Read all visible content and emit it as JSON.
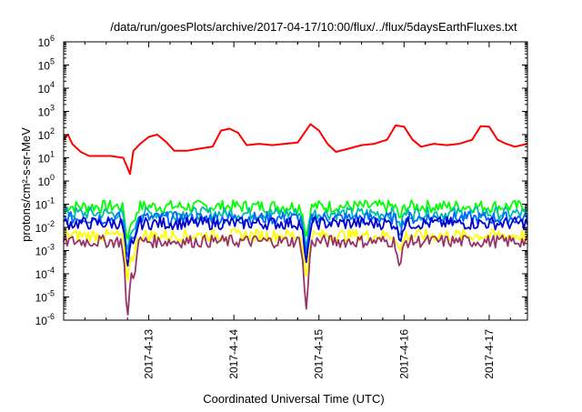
{
  "chart_data": {
    "type": "line",
    "title": "/data/run/goesPlots/archive/2017-04-17/10:00/flux/../flux/5daysEarthFluxes.txt",
    "xlabel": "Coordinated Universal Time (UTC)",
    "ylabel": "protons/cm²-s-sr-MeV",
    "x_ticks": [
      "2017-4-13",
      "2017-4-14",
      "2017-4-15",
      "2017-4-16",
      "2017-4-17"
    ],
    "x_tick_days": [
      13,
      14,
      15,
      16,
      17
    ],
    "xlim_days": [
      12.0,
      17.45
    ],
    "y_scale": "log",
    "y_tick_exponents": [
      -6,
      -5,
      -4,
      -3,
      -2,
      -1,
      0,
      1,
      2,
      3,
      4,
      5,
      6
    ],
    "ylim": [
      1e-06,
      1000000.0
    ],
    "grid": false,
    "series": [
      {
        "color": "#ff0000",
        "baseline": 40,
        "points": [
          [
            12.0,
            60
          ],
          [
            12.05,
            100
          ],
          [
            12.1,
            40
          ],
          [
            12.2,
            18
          ],
          [
            12.3,
            12
          ],
          [
            12.45,
            12
          ],
          [
            12.55,
            12
          ],
          [
            12.7,
            10
          ],
          [
            12.78,
            2
          ],
          [
            12.82,
            20
          ],
          [
            12.9,
            40
          ],
          [
            13.0,
            80
          ],
          [
            13.1,
            100
          ],
          [
            13.2,
            50
          ],
          [
            13.3,
            20
          ],
          [
            13.45,
            20
          ],
          [
            13.6,
            25
          ],
          [
            13.75,
            30
          ],
          [
            13.85,
            150
          ],
          [
            13.95,
            180
          ],
          [
            14.05,
            120
          ],
          [
            14.15,
            35
          ],
          [
            14.3,
            40
          ],
          [
            14.45,
            35
          ],
          [
            14.6,
            40
          ],
          [
            14.75,
            45
          ],
          [
            14.9,
            280
          ],
          [
            15.0,
            150
          ],
          [
            15.1,
            40
          ],
          [
            15.2,
            18
          ],
          [
            15.35,
            25
          ],
          [
            15.5,
            35
          ],
          [
            15.65,
            40
          ],
          [
            15.8,
            60
          ],
          [
            15.9,
            250
          ],
          [
            16.0,
            220
          ],
          [
            16.1,
            60
          ],
          [
            16.2,
            30
          ],
          [
            16.35,
            40
          ],
          [
            16.5,
            35
          ],
          [
            16.65,
            40
          ],
          [
            16.8,
            60
          ],
          [
            16.9,
            230
          ],
          [
            17.0,
            220
          ],
          [
            17.1,
            60
          ],
          [
            17.2,
            40
          ],
          [
            17.3,
            30
          ],
          [
            17.45,
            40
          ]
        ]
      },
      {
        "color": "#00ff00",
        "baseline": 0.08,
        "dip_min": 0.003
      },
      {
        "color": "#00bbaa",
        "baseline": 0.04,
        "dip_min": 0.001
      },
      {
        "color": "#0066ff",
        "baseline": 0.025,
        "dip_min": 0.0005
      },
      {
        "color": "#0000cc",
        "baseline": 0.015,
        "dip_min": 0.0002
      },
      {
        "color": "#ffff00",
        "baseline": 0.0045,
        "dip_min": 5e-05
      },
      {
        "color": "#993366",
        "baseline": 0.0025,
        "dip_min": 1.5e-06
      }
    ],
    "dip_days": [
      12.75,
      12.82,
      14.85,
      15.95
    ]
  }
}
